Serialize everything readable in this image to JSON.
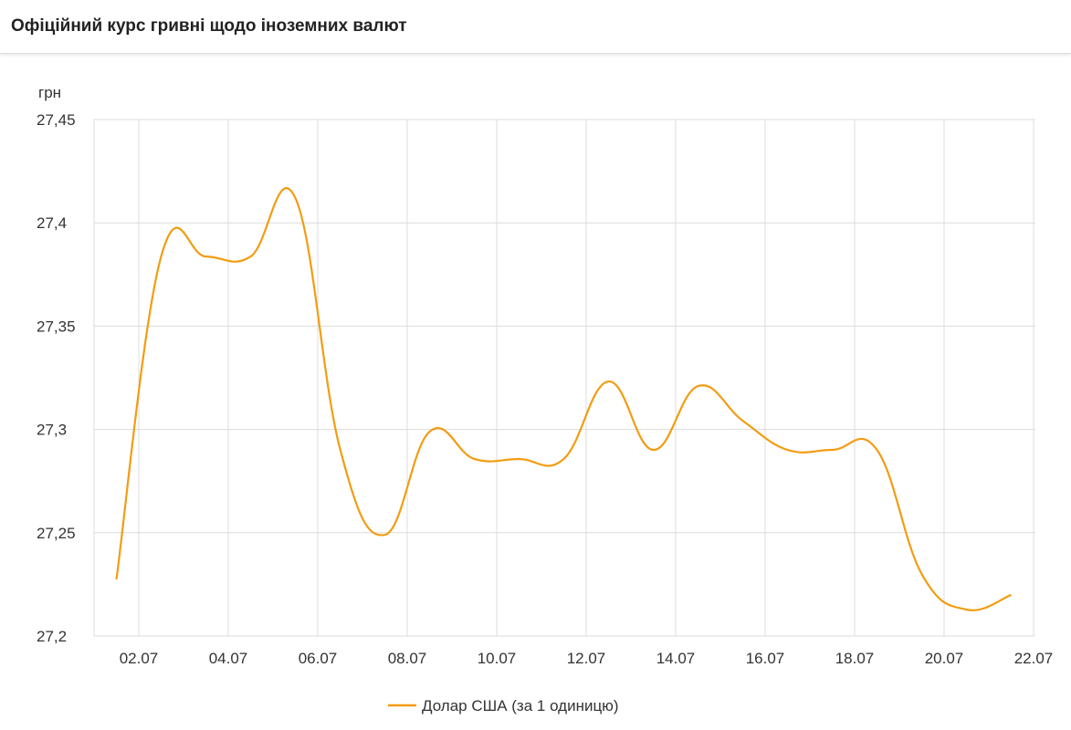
{
  "header": {
    "title": "Офіційний курс гривні щодо іноземних валют"
  },
  "chart_data": {
    "type": "line",
    "title": "",
    "ylabel": "грн",
    "xlabel": "",
    "ylim": [
      27.2,
      27.45
    ],
    "yticks": [
      "27,2",
      "27,25",
      "27,3",
      "27,35",
      "27,4",
      "27,45"
    ],
    "xticks": [
      "02.07",
      "04.07",
      "06.07",
      "08.07",
      "10.07",
      "12.07",
      "14.07",
      "16.07",
      "18.07",
      "20.07",
      "22.07"
    ],
    "grid": true,
    "legend": "bottom",
    "x": [
      "01.07",
      "02.07",
      "03.07",
      "04.07",
      "05.07",
      "06.07",
      "07.07",
      "08.07",
      "09.07",
      "10.07",
      "11.07",
      "12.07",
      "13.07",
      "14.07",
      "15.07",
      "16.07",
      "17.07",
      "18.07",
      "19.07",
      "20.07",
      "21.07"
    ],
    "series": [
      {
        "name": "Долар США (за 1 одиницю)",
        "color": "#f39c12",
        "values": [
          27.2274,
          27.3837,
          27.3837,
          27.3837,
          27.412,
          27.2905,
          27.249,
          27.2989,
          27.2857,
          27.2857,
          27.2857,
          27.3232,
          27.2901,
          27.321,
          27.3042,
          27.2901,
          27.2901,
          27.2901,
          27.23,
          27.2128,
          27.2199
        ]
      }
    ]
  }
}
